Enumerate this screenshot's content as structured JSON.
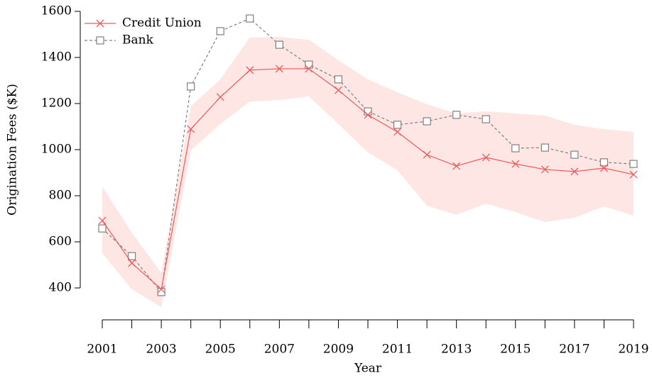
{
  "chart_data": {
    "type": "line",
    "x_label": "Year",
    "y_label": "Origination Fees ($K)",
    "x": [
      2001,
      2002,
      2003,
      2004,
      2005,
      2006,
      2007,
      2008,
      2009,
      2010,
      2011,
      2012,
      2013,
      2014,
      2015,
      2016,
      2017,
      2018,
      2019
    ],
    "series": [
      {
        "name": "Credit Union",
        "color": "#f05a5a",
        "marker": "x",
        "line_style": "solid",
        "values": [
          692,
          508,
          394,
          1089,
          1228,
          1345,
          1351,
          1351,
          1258,
          1151,
          1077,
          978,
          929,
          966,
          938,
          914,
          905,
          920,
          892
        ],
        "band": {
          "color": "#fde6e4",
          "upper": [
            840,
            640,
            465,
            1188,
            1305,
            1486,
            1489,
            1477,
            1388,
            1305,
            1249,
            1197,
            1157,
            1166,
            1157,
            1148,
            1108,
            1089,
            1077
          ],
          "lower": [
            551,
            394,
            317,
            997,
            1111,
            1209,
            1215,
            1231,
            1111,
            988,
            911,
            757,
            717,
            766,
            729,
            686,
            705,
            754,
            714
          ]
        }
      },
      {
        "name": "Bank",
        "color": "#808080",
        "marker": "square",
        "line_style": "dashed",
        "values": [
          658,
          538,
          382,
          1274,
          1514,
          1569,
          1455,
          1369,
          1305,
          1166,
          1108,
          1123,
          1151,
          1132,
          1006,
          1009,
          978,
          945,
          938
        ]
      }
    ],
    "xlim": [
      2001,
      2019
    ],
    "xticks": [
      2001,
      2003,
      2005,
      2007,
      2009,
      2011,
      2013,
      2015,
      2017,
      2019
    ],
    "x_minor_ticks": [
      2002,
      2004,
      2006,
      2008,
      2010,
      2012,
      2014,
      2016,
      2018
    ],
    "ylim": [
      400,
      1600
    ],
    "yticks": [
      400,
      600,
      800,
      1000,
      1200,
      1400,
      1600
    ],
    "grid": false,
    "legend": "upper left"
  }
}
